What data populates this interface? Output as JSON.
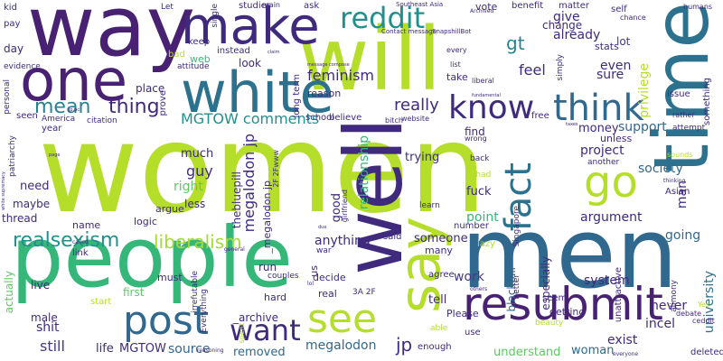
{
  "words": {
    "women": "women",
    "men": "men",
    "people": "people",
    "way": "way",
    "will": "will",
    "time": "time",
    "one": "one",
    "white": "white",
    "make": "make",
    "reddit": "reddit",
    "say": "say",
    "resubmit": "resubmit",
    "post": "post",
    "see": "see",
    "go": "go",
    "well": "well",
    "think": "think",
    "know": "know",
    "fact": "fact",
    "want": "want",
    "realsexism": "realsexism",
    "liberalism": "liberalism",
    "thing": "thing",
    "mean": "mean",
    "gt": "gt",
    "even": "even",
    "feminism": "feminism",
    "really": "really",
    "MGTOW_comments": "MGTOW comments",
    "megalodon_jp": "megalodon jp",
    "feel": "feel",
    "give": "give",
    "already": "already",
    "change": "change",
    "lot": "lot",
    "stats": "stats",
    "privilege": "privilege",
    "sure": "sure",
    "support": "support",
    "project": "project",
    "society": "society",
    "argument": "argument",
    "going": "going",
    "man": "man",
    "university": "university",
    "guy": "guy",
    "right": "right",
    "much": "much",
    "good": "good",
    "relationship": "relationship",
    "point": "point",
    "fuck": "fuck",
    "trying": "trying",
    "anything": "anything",
    "someone": "someone",
    "work": "work",
    "tell": "tell",
    "system": "system",
    "incel": "incel",
    "never": "never",
    "exist": "exist",
    "still": "still",
    "life": "life",
    "MGTOW": "MGTOW",
    "source": "source",
    "removed": "removed",
    "megalodon": "megalodon",
    "jp": "jp",
    "understand": "understand",
    "woman": "woman",
    "shit": "shit",
    "place": "place",
    "web": "web",
    "look": "look",
    "instead": "instead",
    "long_term": "long term",
    "reason": "reason",
    "school": "school",
    "believe": "believe",
    "website": "website",
    "money": "money",
    "find": "find",
    "wrong": "wrong",
    "free": "free",
    "rather": "rather",
    "attempt": "attempt",
    "issue": "issue",
    "something": "something",
    "simply": "simply",
    "take": "take",
    "list": "list",
    "every": "every",
    "liberal": "liberal",
    "vote": "vote",
    "benefit": "benefit",
    "matter": "matter",
    "self": "self",
    "chance": "chance",
    "humans": "humans",
    "studies": "studies",
    "main": "main",
    "ask": "ask",
    "Southeast_Asia": "Southeast Asia",
    "Contact_message": "Contact message",
    "SnapshillBot": "SnapshillBot",
    "Archived": "Archived",
    "kid": "kid",
    "pay": "pay",
    "evidence": "evidence",
    "Let": "Let",
    "single": "single",
    "keep": "keep",
    "bad": "bad",
    "attitude": "attitude",
    "day": "day",
    "personal": "personal",
    "citation": "citation",
    "America": "America",
    "seen": "seen",
    "year": "year",
    "patriarchy": "patriarchy",
    "need": "need",
    "maybe": "maybe",
    "thread": "thread",
    "name": "name",
    "link": "link",
    "actually": "actually",
    "male": "male",
    "live": "live",
    "first": "first",
    "must": "must",
    "hard": "hard",
    "real": "real",
    "start": "start",
    "argue": "argue",
    "logic": "logic",
    "less": "less",
    "thebluepill": "thebluepill",
    "megalodon_jp_v": "_megalodon jp",
    "2F_2Fwww": "2F 2Fwww",
    "girlfriend": "girlfriend",
    "said": "said",
    "many": "many",
    "decide": "decide",
    "run": "run",
    "couples": "couples",
    "us": "us",
    "3A_2F": "3A 2F",
    "Please": "Please",
    "getting": "getting",
    "especially": "especially",
    "blackpill": "blackpill",
    "better": "better",
    "seem": "seem",
    "unattractive": "unattractive",
    "alimony": "alimony",
    "beauty": "beauty",
    "debate": "debate",
    "ceddit": "ceddit",
    "Yes": "Yes",
    "deleted": "deleted",
    "everyone": "everyone",
    "enough": "enough",
    "able": "able",
    "use": "use",
    "agree": "agree",
    "others": "others",
    "another": "another",
    "unless": "unless",
    "sounds": "sounds",
    "Asian": "Asian",
    "thinking": "thinking",
    "lazy": "lazy",
    "Singapore": "Singapore",
    "number": "number",
    "learn": "learn",
    "back": "back",
    "Chad": "Chad",
    "bitch": "bitch",
    "irrefutable": "irrefutable",
    "Everything": "Everything",
    "spent": "spent",
    "reasoning": "reasoning",
    "archive": "_archive",
    "called": "called",
    "general": "general",
    "war": "war",
    "prove": "prove",
    "fundamental": "fundamental",
    "taxes": "taxes",
    "lol": "lol",
    "white_supremacy": "white supremacy",
    "page": "page",
    "jp_pc": "jp pc",
    "claim": "claim",
    "message_compose": "message compose",
    "due": "due"
  },
  "colors": {
    "dark_purple": "#3f2a7e",
    "purple": "#482173",
    "blue": "#31688e",
    "teal": "#21908d",
    "green": "#35b779",
    "light_green": "#5ec962",
    "lime": "#b5de2b"
  }
}
